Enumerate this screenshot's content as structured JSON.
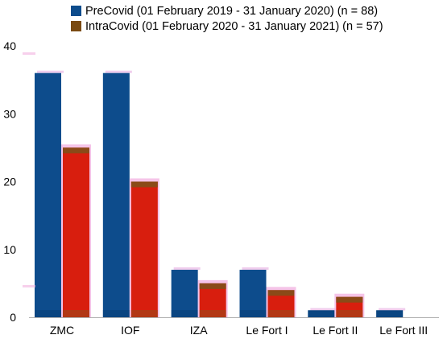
{
  "chart_data": {
    "type": "bar",
    "categories": [
      "ZMC",
      "IOF",
      "IZA",
      "Le Fort I",
      "Le Fort II",
      "Le Fort III"
    ],
    "series": [
      {
        "name": "PreCovid (01 February 2019 - 31 January 2020)  (n = 88)",
        "values": [
          36,
          36,
          7,
          7,
          1,
          1
        ],
        "color": "#0d4c8c"
      },
      {
        "name": "IntraCovid (01 February 2020 - 31 January 2021) (n = 57)",
        "values": [
          25,
          20,
          5,
          4,
          3,
          0
        ],
        "color": "#d81e0e"
      }
    ],
    "colors": {
      "precovid_swatch": "#0d4c8c",
      "intracovid_swatch": "#7a4a12",
      "intracovid_bar": "#d81e0e",
      "intracovid_bar_top": "#8a4a18"
    },
    "yticks": [
      0,
      10,
      20,
      30,
      40
    ],
    "ylim": [
      0,
      40
    ],
    "grid": false,
    "legend_position": "top"
  }
}
